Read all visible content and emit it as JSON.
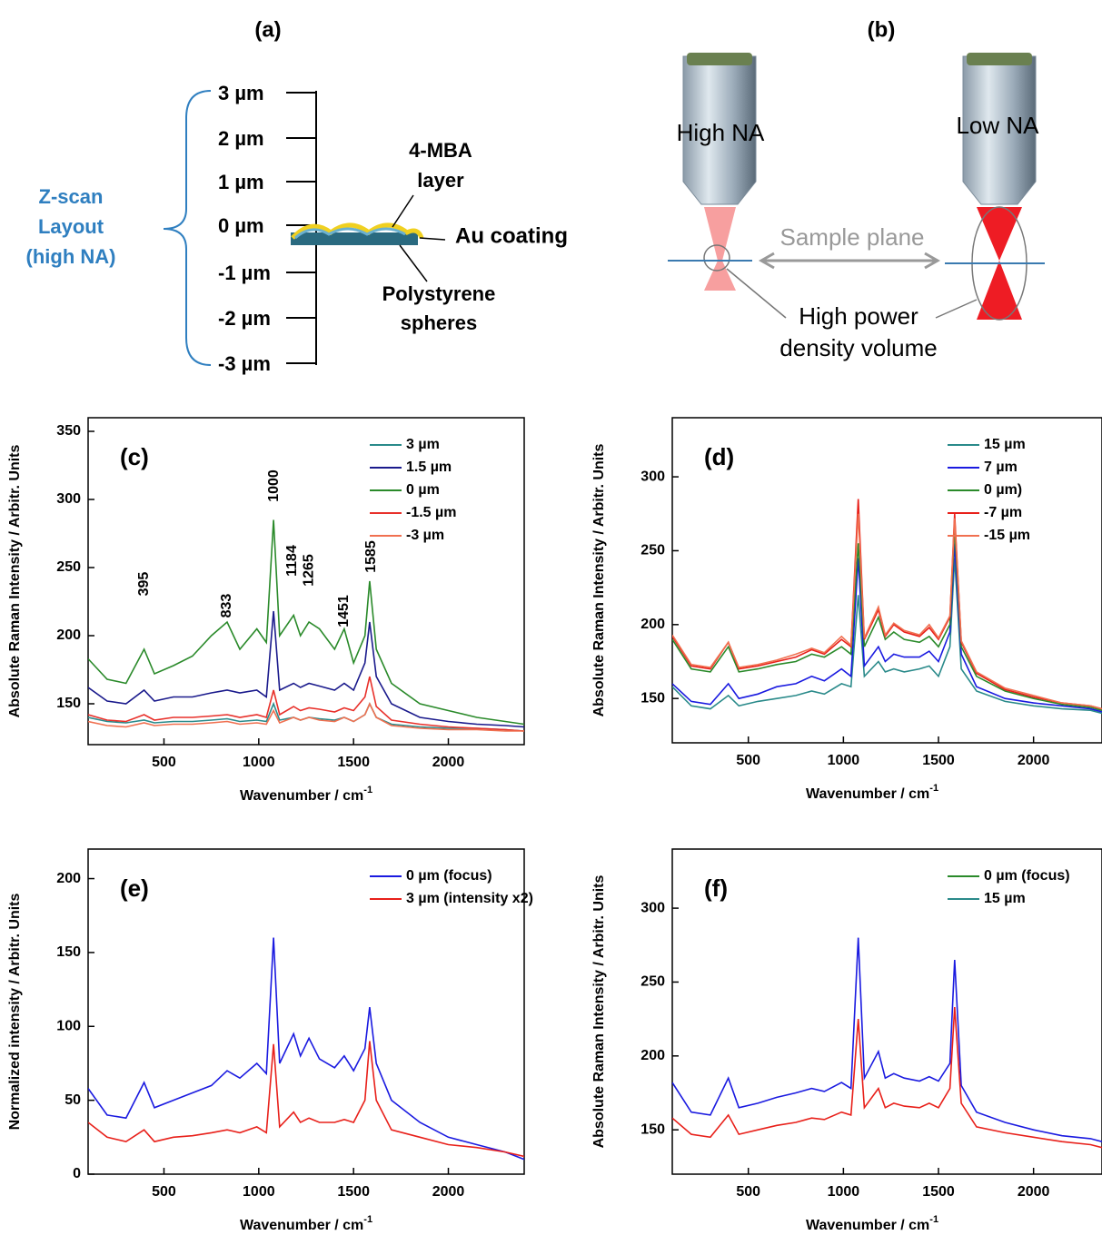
{
  "panel_a": {
    "label": "(a)",
    "z_labels": [
      "3 µm",
      "2 µm",
      "1 µm",
      "0 µm",
      "-1 µm",
      "-2 µm",
      "-3 µm"
    ],
    "side_text": [
      "Z-scan",
      "Layout",
      "(high NA)"
    ],
    "layer_text": [
      "4-MBA",
      "layer"
    ],
    "coating_text": "Au coating",
    "sphere_text": [
      "Polystyrene",
      "spheres"
    ]
  },
  "panel_b": {
    "label": "(b)",
    "left_objective": "High NA",
    "right_objective": "Low NA",
    "plane_text": "Sample plane",
    "volume_text": [
      "High power",
      "density volume"
    ]
  },
  "chart_data": [
    {
      "type": "line",
      "label": "(c)",
      "xlabel": "Wavenumber / cm",
      "xlabel_sup": "-1",
      "ylabel": "Absolute Raman Intensity / Arbitr. Units",
      "xlim": [
        100,
        2400
      ],
      "xticks": [
        500,
        1000,
        1500,
        2000
      ],
      "ylim": [
        120,
        360
      ],
      "yticks": [
        150,
        200,
        250,
        300,
        350
      ],
      "legend": "upper right",
      "x": [
        100,
        200,
        300,
        395,
        450,
        550,
        650,
        750,
        833,
        900,
        990,
        1040,
        1078,
        1110,
        1184,
        1220,
        1265,
        1320,
        1400,
        1451,
        1500,
        1560,
        1585,
        1620,
        1700,
        1850,
        2000,
        2150,
        2300,
        2400
      ],
      "series": [
        {
          "name": "3 µm",
          "color": "#2a8a8a",
          "values": [
            140,
            137,
            136,
            138,
            136,
            137,
            137,
            138,
            139,
            137,
            138,
            137,
            150,
            138,
            140,
            138,
            140,
            139,
            138,
            140,
            137,
            142,
            150,
            140,
            135,
            133,
            132,
            132,
            131,
            130
          ]
        },
        {
          "name": "1.5 µm",
          "color": "#1a1a8c",
          "values": [
            162,
            152,
            150,
            160,
            152,
            155,
            155,
            158,
            160,
            158,
            160,
            155,
            218,
            160,
            165,
            162,
            165,
            163,
            160,
            165,
            160,
            180,
            210,
            170,
            150,
            140,
            137,
            135,
            134,
            133
          ]
        },
        {
          "name": "0 µm",
          "color": "#2a8a2a",
          "values": [
            183,
            168,
            165,
            190,
            172,
            178,
            185,
            200,
            210,
            190,
            205,
            195,
            285,
            200,
            215,
            200,
            210,
            205,
            190,
            205,
            180,
            200,
            240,
            190,
            165,
            150,
            145,
            140,
            137,
            135
          ]
        },
        {
          "name": "-1.5 µm",
          "color": "#e8302a",
          "values": [
            142,
            138,
            137,
            142,
            138,
            140,
            140,
            141,
            142,
            140,
            142,
            140,
            160,
            142,
            148,
            145,
            147,
            146,
            144,
            147,
            145,
            155,
            170,
            148,
            138,
            135,
            133,
            132,
            131,
            130
          ]
        },
        {
          "name": "-3 µm",
          "color": "#f07050",
          "values": [
            137,
            134,
            133,
            136,
            134,
            135,
            135,
            136,
            137,
            135,
            136,
            135,
            145,
            136,
            140,
            138,
            140,
            138,
            137,
            140,
            137,
            142,
            150,
            140,
            134,
            132,
            131,
            131,
            130,
            130
          ]
        }
      ],
      "annotations": [
        {
          "text": "395",
          "x": 395,
          "y": 238
        },
        {
          "text": "833",
          "x": 833,
          "y": 222
        },
        {
          "text": "1000",
          "x": 1081,
          "y": 310
        },
        {
          "text": "1184",
          "x": 1176,
          "y": 255
        },
        {
          "text": "1265",
          "x": 1265,
          "y": 248
        },
        {
          "text": "1451",
          "x": 1451,
          "y": 218
        },
        {
          "text": "1585",
          "x": 1595,
          "y": 258
        }
      ]
    },
    {
      "type": "line",
      "label": "(d)",
      "xlabel": "Wavenumber / cm",
      "xlabel_sup": "-1",
      "ylabel": "Absolute Raman Intensity / Arbitr. Units",
      "xlim": [
        100,
        2360
      ],
      "xticks": [
        500,
        1000,
        1500,
        2000
      ],
      "ylim": [
        120,
        340
      ],
      "yticks": [
        150,
        200,
        250,
        300
      ],
      "legend": "upper right",
      "x": [
        100,
        200,
        300,
        395,
        450,
        550,
        650,
        750,
        833,
        900,
        990,
        1040,
        1078,
        1110,
        1184,
        1220,
        1265,
        1320,
        1400,
        1451,
        1500,
        1560,
        1585,
        1620,
        1700,
        1850,
        2000,
        2150,
        2300,
        2360
      ],
      "series": [
        {
          "name": "15 µm",
          "color": "#2a8a8a",
          "values": [
            158,
            145,
            143,
            152,
            145,
            148,
            150,
            152,
            155,
            153,
            160,
            158,
            220,
            165,
            175,
            168,
            170,
            168,
            170,
            172,
            165,
            185,
            245,
            170,
            155,
            148,
            145,
            143,
            142,
            140
          ]
        },
        {
          "name": "7 µm",
          "color": "#1a1ae0",
          "values": [
            160,
            148,
            146,
            160,
            150,
            153,
            158,
            160,
            165,
            162,
            170,
            165,
            245,
            172,
            185,
            175,
            180,
            178,
            178,
            182,
            175,
            195,
            255,
            180,
            158,
            150,
            147,
            145,
            143,
            141
          ]
        },
        {
          "name": "0 µm)",
          "color": "#2a8a2a",
          "values": [
            190,
            170,
            168,
            185,
            168,
            170,
            173,
            175,
            180,
            178,
            185,
            180,
            255,
            185,
            205,
            190,
            195,
            190,
            188,
            192,
            185,
            200,
            265,
            185,
            165,
            155,
            150,
            146,
            144,
            142
          ]
        },
        {
          "name": "-7 µm",
          "color": "#e8201a",
          "values": [
            192,
            172,
            170,
            188,
            170,
            172,
            175,
            178,
            183,
            180,
            190,
            185,
            285,
            190,
            210,
            192,
            200,
            195,
            192,
            198,
            190,
            205,
            275,
            188,
            167,
            156,
            151,
            147,
            145,
            143
          ]
        },
        {
          "name": "-15 µm",
          "color": "#f07050",
          "values": [
            193,
            173,
            171,
            188,
            171,
            173,
            176,
            180,
            184,
            181,
            192,
            186,
            275,
            191,
            212,
            193,
            201,
            196,
            193,
            200,
            191,
            206,
            272,
            189,
            168,
            157,
            152,
            147,
            145,
            143
          ]
        }
      ]
    },
    {
      "type": "line",
      "label": "(e)",
      "xlabel": "Wavenumber / cm",
      "xlabel_sup": "-1",
      "ylabel": "Normalized intensity / Arbitr. Units",
      "xlim": [
        100,
        2400
      ],
      "xticks": [
        500,
        1000,
        1500,
        2000
      ],
      "ylim": [
        0,
        220
      ],
      "yticks": [
        0,
        50,
        100,
        150,
        200
      ],
      "legend": "upper right",
      "x": [
        100,
        200,
        300,
        395,
        450,
        550,
        650,
        750,
        833,
        900,
        990,
        1040,
        1078,
        1110,
        1184,
        1220,
        1265,
        1320,
        1400,
        1451,
        1500,
        1560,
        1585,
        1620,
        1700,
        1850,
        2000,
        2150,
        2300,
        2400
      ],
      "series": [
        {
          "name": "0 µm (focus)",
          "color": "#1a1ae0",
          "values": [
            58,
            40,
            38,
            62,
            45,
            50,
            55,
            60,
            70,
            65,
            75,
            68,
            160,
            75,
            95,
            80,
            92,
            78,
            72,
            80,
            70,
            85,
            113,
            75,
            50,
            35,
            25,
            20,
            15,
            10
          ]
        },
        {
          "name": "3 µm (intensity x2)",
          "color": "#e8201a",
          "values": [
            35,
            25,
            22,
            30,
            22,
            25,
            26,
            28,
            30,
            28,
            32,
            28,
            88,
            32,
            42,
            35,
            38,
            35,
            35,
            37,
            35,
            50,
            90,
            50,
            30,
            25,
            20,
            18,
            15,
            12
          ]
        }
      ]
    },
    {
      "type": "line",
      "label": "(f)",
      "xlabel": "Wavenumber / cm",
      "xlabel_sup": "-1",
      "ylabel": "Absolute Raman Intensity / Arbitr. Units",
      "xlim": [
        100,
        2360
      ],
      "xticks": [
        500,
        1000,
        1500,
        2000
      ],
      "ylim": [
        120,
        340
      ],
      "yticks": [
        150,
        200,
        250,
        300
      ],
      "legend": "upper right",
      "x": [
        100,
        200,
        300,
        395,
        450,
        550,
        650,
        750,
        833,
        900,
        990,
        1040,
        1078,
        1110,
        1184,
        1220,
        1265,
        1320,
        1400,
        1451,
        1500,
        1560,
        1585,
        1620,
        1700,
        1850,
        2000,
        2150,
        2300,
        2360
      ],
      "series": [
        {
          "name": "0 µm (focus)",
          "color": "#1a1ae0",
          "legend_color": "#2a8a2a",
          "values": [
            182,
            162,
            160,
            185,
            165,
            168,
            172,
            175,
            178,
            176,
            182,
            178,
            280,
            185,
            203,
            185,
            188,
            185,
            183,
            186,
            183,
            195,
            265,
            180,
            162,
            155,
            150,
            146,
            144,
            142
          ]
        },
        {
          "name": "15 µm",
          "color": "#e8201a",
          "legend_color": "#2a8a8a",
          "values": [
            158,
            147,
            145,
            160,
            147,
            150,
            153,
            155,
            158,
            157,
            162,
            160,
            225,
            165,
            178,
            165,
            168,
            166,
            165,
            168,
            165,
            178,
            233,
            168,
            152,
            148,
            145,
            142,
            140,
            138
          ]
        }
      ]
    }
  ]
}
